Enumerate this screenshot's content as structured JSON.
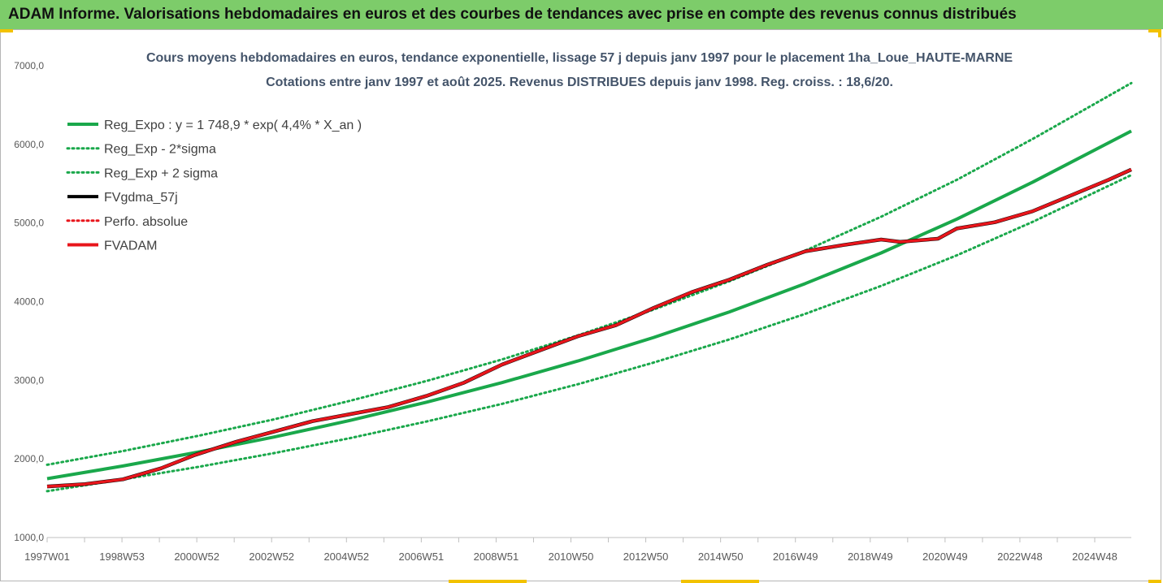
{
  "banner": {
    "text": "ADAM Informe. Valorisations hebdomadaires en euros et des courbes de tendances avec prise en compte des revenus connus distribués"
  },
  "colors": {
    "banner_bg": "#7dcc6a",
    "trend_green": "#1aa84b",
    "series_red": "#e8151b",
    "series_black": "#000000",
    "corner_marker": "#f2c200"
  },
  "chart_data": {
    "type": "line",
    "title_line1": "Cours moyens hebdomadaires en euros, tendance exponentielle, lissage 57 j depuis janv 1997 pour le placement 1ha_Loue_HAUTE-MARNE",
    "title_line2": "Cotations entre janv 1997 et août 2025. Revenus DISTRIBUES depuis janv 1998. Reg. croiss. : 18,6/20.",
    "xlabel": "",
    "ylabel": "",
    "x_range": [
      1997.0,
      2025.6
    ],
    "ylim": [
      1000,
      7000
    ],
    "y_ticks": [
      "1000,0",
      "2000,0",
      "3000,0",
      "4000,0",
      "5000,0",
      "6000,0",
      "7000,0"
    ],
    "x_tick_labels": [
      "1997W01",
      "1998W53",
      "2000W52",
      "2002W52",
      "2004W52",
      "2006W51",
      "2008W51",
      "2010W50",
      "2012W50",
      "2014W50",
      "2016W49",
      "2018W49",
      "2020W49",
      "2022W48",
      "2024W48"
    ],
    "grid": false,
    "legend_position": "top-left",
    "series": [
      {
        "name": "Reg_Expo : y = 1 748,9 * exp( 4,4% *  X_an )",
        "color": "#1aa84b",
        "style": "solid",
        "x": [
          1997,
          1999,
          2001,
          2003,
          2005,
          2007,
          2009,
          2011,
          2013,
          2015,
          2017,
          2019,
          2021,
          2023,
          2025.6
        ],
        "values": [
          1749,
          1910,
          2088,
          2280,
          2490,
          2720,
          2970,
          3245,
          3545,
          3870,
          4230,
          4620,
          5050,
          5520,
          6170
        ]
      },
      {
        "name": "Reg_Exp - 2*sigma",
        "color": "#1aa84b",
        "style": "dotted",
        "x": [
          1997,
          1999,
          2001,
          2003,
          2005,
          2007,
          2009,
          2011,
          2013,
          2015,
          2017,
          2019,
          2021,
          2023,
          2025.6
        ],
        "values": [
          1590,
          1740,
          1900,
          2075,
          2265,
          2475,
          2700,
          2950,
          3225,
          3520,
          3845,
          4200,
          4590,
          5015,
          5610
        ]
      },
      {
        "name": "Reg_Exp + 2 sigma",
        "color": "#1aa84b",
        "style": "dotted",
        "x": [
          1997,
          1999,
          2001,
          2003,
          2005,
          2007,
          2009,
          2011,
          2013,
          2015,
          2017,
          2019,
          2021,
          2023,
          2025.6
        ],
        "values": [
          1925,
          2100,
          2295,
          2505,
          2740,
          2990,
          3265,
          3570,
          3900,
          4260,
          4650,
          5080,
          5550,
          6070,
          6780
        ]
      },
      {
        "name": "FVgdma_57j",
        "color": "#000000",
        "style": "solid",
        "x": [
          1997,
          1998,
          1999,
          2000,
          2000.9,
          2002,
          2003,
          2004,
          2005,
          2006,
          2007,
          2008,
          2009,
          2010,
          2011,
          2012,
          2013,
          2014,
          2015,
          2016,
          2017,
          2018,
          2019,
          2019.5,
          2020.5,
          2021,
          2022,
          2023,
          2024,
          2025,
          2025.6
        ],
        "values": [
          1650,
          1680,
          1740,
          1880,
          2050,
          2220,
          2350,
          2480,
          2570,
          2660,
          2800,
          2970,
          3200,
          3380,
          3560,
          3700,
          3920,
          4120,
          4280,
          4470,
          4640,
          4720,
          4790,
          4760,
          4800,
          4930,
          5010,
          5150,
          5350,
          5550,
          5680
        ]
      },
      {
        "name": "Perfo. absolue",
        "color": "#e8151b",
        "style": "dotted",
        "x": [],
        "values": []
      },
      {
        "name": "FVADAM",
        "color": "#e8151b",
        "style": "solid",
        "x": [
          1997,
          1998,
          1999,
          2000,
          2000.9,
          2002,
          2003,
          2004,
          2005,
          2006,
          2007,
          2008,
          2009,
          2010,
          2011,
          2012,
          2013,
          2014,
          2015,
          2016,
          2017,
          2018,
          2019,
          2019.5,
          2020.5,
          2021,
          2022,
          2023,
          2024,
          2025,
          2025.6
        ],
        "values": [
          1650,
          1680,
          1740,
          1880,
          2050,
          2220,
          2350,
          2480,
          2570,
          2660,
          2800,
          2970,
          3200,
          3380,
          3560,
          3700,
          3920,
          4120,
          4280,
          4470,
          4640,
          4720,
          4790,
          4760,
          4800,
          4930,
          5010,
          5150,
          5350,
          5550,
          5680
        ]
      }
    ]
  }
}
